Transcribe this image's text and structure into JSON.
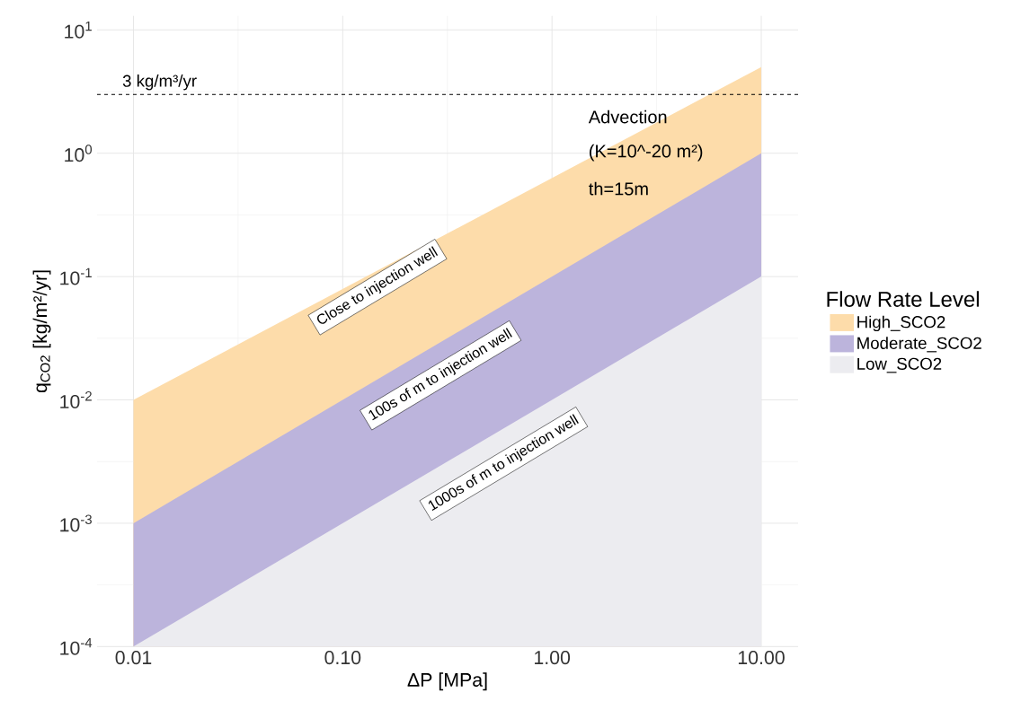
{
  "chart_data": {
    "type": "area",
    "xlabel": "ΔP [MPa]",
    "ylabel": "q$_{CO2}$ [kg/m²/yr]",
    "legend_title": "Flow Rate Level",
    "log": "xy",
    "grid": true,
    "legend": "right",
    "xlim": [
      0.0067,
      15
    ],
    "ylim": [
      0.0001,
      13
    ],
    "xticks": [
      {
        "value": 0.01,
        "label": "0.01"
      },
      {
        "value": 0.1,
        "label": "0.10"
      },
      {
        "value": 1,
        "label": "1.00"
      },
      {
        "value": 10,
        "label": "10.00"
      }
    ],
    "yticks": [
      {
        "value": 0.0001,
        "label": "10$^{-4}$"
      },
      {
        "value": 0.001,
        "label": "10$^{-3}$"
      },
      {
        "value": 0.01,
        "label": "10$^{-2}$"
      },
      {
        "value": 0.1,
        "label": "10$^{-1}$"
      },
      {
        "value": 1,
        "label": "10$^{0}$"
      },
      {
        "value": 10,
        "label": "10$^{1}$"
      }
    ],
    "x": [
      0.01,
      10
    ],
    "series": [
      {
        "name": "High_SCO2",
        "color": "#fddcaa",
        "values": [
          0.01,
          5
        ]
      },
      {
        "name": "Moderate_SCO2",
        "color": "#bcb4dc",
        "values": [
          0.001,
          1
        ]
      },
      {
        "name": "Low_SCO2",
        "color": "#ececf0",
        "values": [
          0.0001,
          0.1
        ]
      }
    ],
    "ref_lines": [
      {
        "axis": "y",
        "value": 3,
        "label": "3 kg/m³/yr",
        "color": "#000000",
        "line_style": "dashed"
      }
    ],
    "annotations": [
      "Advection",
      "(K=10^-20 m²)",
      "th=15m",
      "Close to injection well",
      "100s of m to injection well",
      "1000s of m to injection well"
    ]
  }
}
